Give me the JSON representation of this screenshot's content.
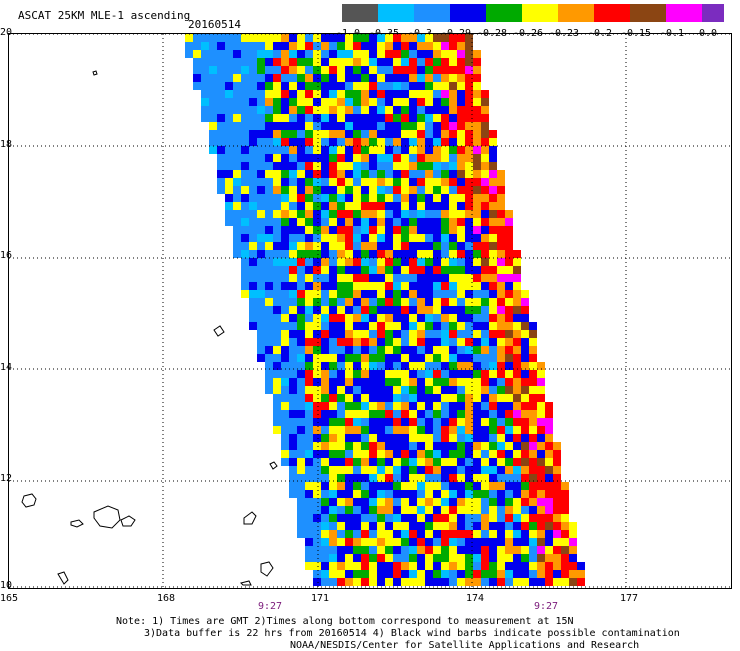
{
  "header": {
    "title": "ASCAT 25KM MLE-1 ascending",
    "date": "20160514"
  },
  "colorbar": {
    "labels": [
      "-1.0",
      "-0.35",
      "-0.3",
      "-0.29",
      "-0.28",
      "-0.26",
      "-0.23",
      "-0.2",
      "-0.15",
      "-0.1",
      "0.0"
    ],
    "colors": [
      "#555555",
      "#00bfff",
      "#1e90ff",
      "#0000ee",
      "#00aa00",
      "#ffff00",
      "#ff9900",
      "#ff0000",
      "#8b4513",
      "#ff00ff",
      "#7b2cbf"
    ]
  },
  "axes": {
    "lat_labels": [
      "20",
      "18",
      "16",
      "14",
      "12",
      "10"
    ],
    "lon_labels": [
      "165",
      "168",
      "171",
      "174",
      "177"
    ]
  },
  "times": [
    "9:27",
    "9:27"
  ],
  "notes": [
    "Note: 1) Times are GMT 2)Times along bottom correspond to measurement at 15N",
    "3)Data buffer is 22 hrs from 20160514 4) Black wind barbs indicate possible contamination",
    "NOAA/NESDIS/Center for Satellite Applications and Research"
  ],
  "map": {
    "swath_palette": [
      "#1e90ff",
      "#0000ee",
      "#00bfff",
      "#00aa00",
      "#ffff00",
      "#ff9900",
      "#ff0000",
      "#8b4513",
      "#ff00ff",
      "#555555"
    ],
    "left_fill": "#1e90ff"
  }
}
